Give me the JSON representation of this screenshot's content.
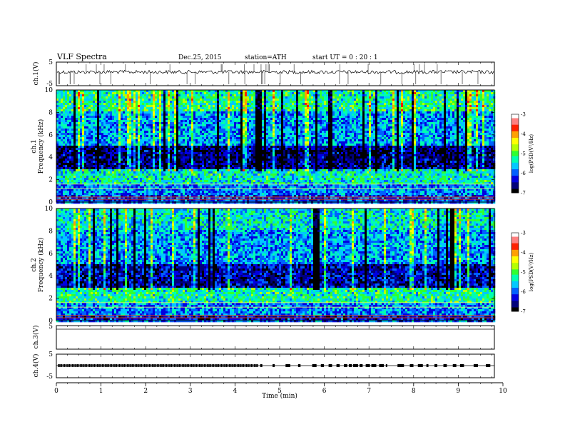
{
  "header": {
    "title": "VLF  Spectra",
    "date": "Dec.25, 2015",
    "station": "station=ATH",
    "start": "start  UT  =   0  : 20 : 1"
  },
  "chart_data": [
    {
      "type": "line",
      "name": "ch1-waveform",
      "ylabel": "ch.1(V)",
      "ylim": [
        -5,
        5
      ],
      "yticks": [
        "5",
        "-5"
      ],
      "description_of_signal": "noisy waveform near 0 V with frequent sharp spikes"
    },
    {
      "type": "heatmap",
      "name": "ch1-spectrogram",
      "ylabel_line1": "ch.1",
      "ylabel_line2": "Frequency  (kHz)",
      "ylim": [
        0,
        10
      ],
      "yticks": [
        "0",
        "2",
        "4",
        "6",
        "8",
        "10"
      ],
      "colorbar": {
        "label": "log(PSD(V²/Hz)",
        "range": [
          -7,
          -3
        ],
        "ticks": [
          "-3",
          "-4",
          "-5",
          "-6",
          "-7"
        ]
      },
      "bands": [
        {
          "from": 0,
          "to": 0.6,
          "level": -6.2
        },
        {
          "from": 0.6,
          "to": 1.5,
          "level": -5.9
        },
        {
          "from": 1.5,
          "to": 3.0,
          "level": -5.4
        },
        {
          "from": 3.0,
          "to": 5.0,
          "level": -6.7
        },
        {
          "from": 5.0,
          "to": 8.0,
          "level": -5.8
        },
        {
          "from": 8.0,
          "to": 10.0,
          "level": -5.3
        }
      ]
    },
    {
      "type": "heatmap",
      "name": "ch2-spectrogram",
      "ylabel_line1": "ch.2",
      "ylabel_line2": "Frequency  (kHz)",
      "ylim": [
        0,
        10
      ],
      "yticks": [
        "0",
        "2",
        "4",
        "6",
        "8",
        "10"
      ],
      "colorbar": {
        "label": "log(PSD(V²/Hz)",
        "range": [
          -7,
          -3
        ],
        "ticks": [
          "-3",
          "-4",
          "-5",
          "-6",
          "-7"
        ]
      },
      "bands": [
        {
          "from": 0,
          "to": 0.5,
          "level": -6.4
        },
        {
          "from": 0.5,
          "to": 1.5,
          "level": -5.9
        },
        {
          "from": 1.5,
          "to": 3.0,
          "level": -5.3
        },
        {
          "from": 3.0,
          "to": 5.0,
          "level": -6.5
        },
        {
          "from": 5.0,
          "to": 8.0,
          "level": -5.8
        },
        {
          "from": 8.0,
          "to": 10.0,
          "level": -5.5
        }
      ]
    },
    {
      "type": "line",
      "name": "ch3-waveform",
      "ylabel": "ch.3(V)",
      "ylim": [
        -5,
        5
      ],
      "yticks": [
        "5"
      ],
      "description_of_signal": "flat line"
    },
    {
      "type": "line",
      "name": "ch4-waveform",
      "ylabel": "ch.4(V)",
      "ylim": [
        -5,
        5
      ],
      "yticks": [
        "5",
        "-5"
      ],
      "description_of_signal": "near-zero line with pulse marks, dense before 4.5 min, sparse afterwards"
    }
  ],
  "xaxis": {
    "label": "Time  (min)",
    "range": [
      0,
      10
    ],
    "ticks": [
      "0",
      "1",
      "2",
      "3",
      "4",
      "5",
      "6",
      "7",
      "8",
      "9",
      "10"
    ],
    "data_end": 9.8
  },
  "colors": {
    "cmap": [
      "#000000",
      "#00007a",
      "#0000e0",
      "#0060ff",
      "#00c8ff",
      "#00ffb0",
      "#30ff30",
      "#b4ff00",
      "#ffff00",
      "#ffa000",
      "#ff2000",
      "#ff8080",
      "#ffffff"
    ],
    "axis": "#000000"
  }
}
